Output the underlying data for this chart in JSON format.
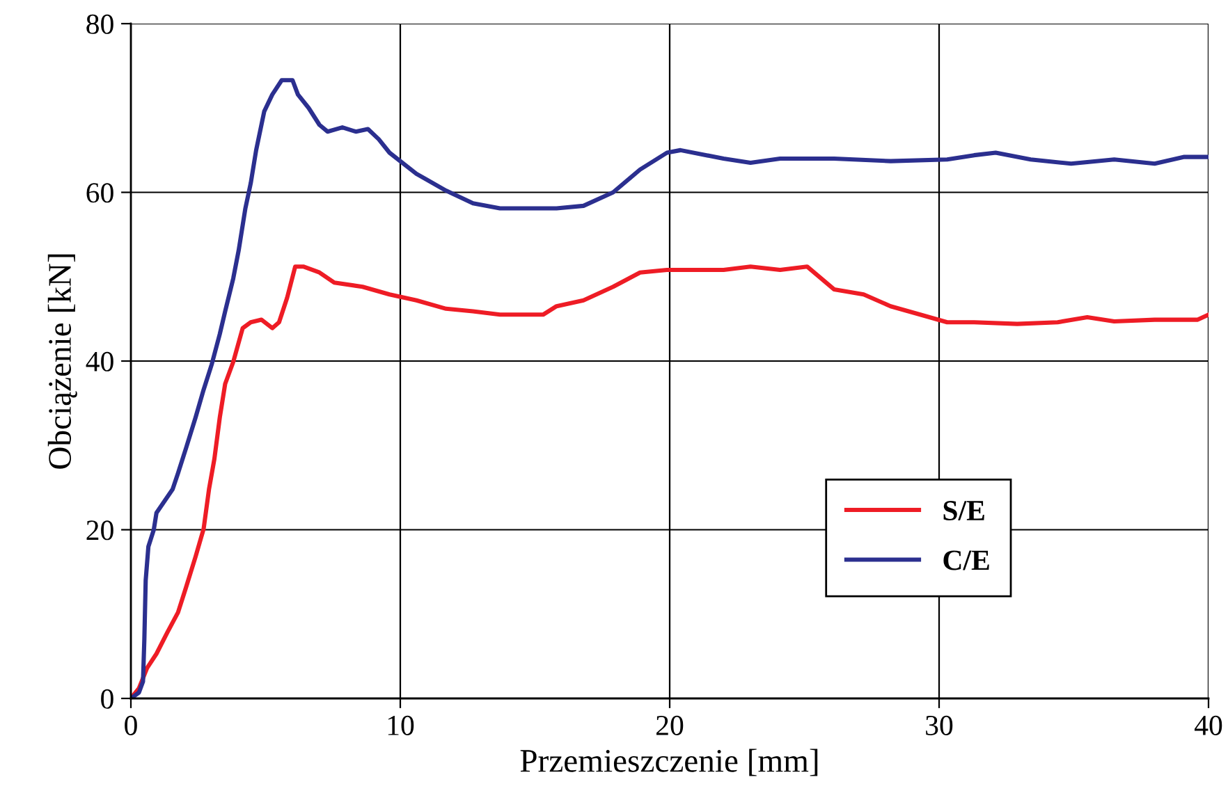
{
  "chart_data": {
    "type": "line",
    "xlabel": "Przemieszczenie [mm]",
    "ylabel": "Obciążenie [kN]",
    "xlim": [
      0,
      40
    ],
    "xticks": [
      0,
      10,
      20,
      30,
      40
    ],
    "ylim": [
      0,
      80
    ],
    "yticks": [
      0,
      20,
      40,
      60,
      80
    ],
    "grid": true,
    "legend": "bottom right",
    "marker": "none",
    "line_style": "solid",
    "series": [
      {
        "name": "S/E",
        "color": "#ee1c25",
        "x": [
          0,
          0.3,
          0.6,
          0.95,
          1.35,
          1.75,
          2.05,
          2.4,
          2.7,
          2.9,
          3.1,
          3.3,
          3.5,
          3.8,
          4.15,
          4.45,
          4.85,
          5.25,
          5.5,
          5.8,
          6.1,
          6.4,
          7.0,
          7.55,
          8.6,
          9.6,
          10.6,
          11.7,
          12.7,
          13.7,
          15.3,
          15.8,
          16.8,
          17.9,
          18.9,
          19.9,
          22.0,
          23.0,
          24.1,
          25.1,
          26.1,
          27.2,
          28.2,
          29.3,
          30.3,
          31.3,
          32.9,
          34.4,
          35.5,
          36.5,
          38.0,
          39.6,
          40
        ],
        "values": [
          0,
          1.2,
          3.6,
          5.3,
          7.8,
          10.2,
          13.2,
          16.8,
          20.1,
          24.8,
          28.4,
          33.3,
          37.3,
          39.9,
          43.9,
          44.6,
          44.9,
          43.9,
          44.6,
          47.5,
          51.2,
          51.2,
          50.5,
          49.3,
          48.8,
          47.9,
          47.2,
          46.2,
          45.9,
          45.5,
          45.5,
          46.5,
          47.2,
          48.8,
          50.5,
          50.8,
          50.8,
          51.2,
          50.8,
          51.2,
          48.5,
          47.9,
          46.5,
          45.5,
          44.6,
          44.6,
          44.4,
          44.6,
          45.2,
          44.7,
          44.9,
          44.9,
          45.5
        ]
      },
      {
        "name": "C/E",
        "color": "#2b2f8f",
        "x": [
          0,
          0.3,
          0.45,
          0.5,
          0.55,
          0.65,
          0.85,
          0.95,
          1.25,
          1.55,
          1.75,
          2.05,
          2.4,
          2.7,
          3.0,
          3.3,
          3.5,
          3.8,
          4.0,
          4.25,
          4.45,
          4.65,
          4.95,
          5.25,
          5.6,
          6.0,
          6.2,
          6.6,
          7.0,
          7.3,
          7.85,
          8.35,
          8.8,
          9.2,
          9.6,
          10.6,
          11.7,
          12.7,
          13.7,
          15.8,
          16.8,
          17.9,
          18.9,
          19.9,
          20.4,
          22.0,
          23.0,
          24.1,
          26.1,
          28.2,
          30.3,
          31.3,
          32.1,
          33.4,
          34.9,
          36.5,
          38.0,
          39.1,
          40
        ],
        "values": [
          0,
          0.7,
          2,
          7,
          14,
          18,
          20,
          22,
          23.4,
          24.8,
          26.7,
          29.7,
          33.3,
          36.6,
          39.6,
          43.2,
          45.9,
          49.8,
          53.1,
          58.1,
          61.1,
          65,
          69.6,
          71.6,
          73.3,
          73.3,
          71.6,
          70,
          68,
          67.2,
          67.7,
          67.2,
          67.5,
          66.3,
          64.7,
          62.2,
          60.2,
          58.7,
          58.1,
          58.1,
          58.4,
          60,
          62.7,
          64.7,
          65,
          64,
          63.5,
          64,
          64,
          63.7,
          63.9,
          64.4,
          64.7,
          63.9,
          63.4,
          63.9,
          63.4,
          64.2,
          64.2
        ]
      }
    ]
  }
}
